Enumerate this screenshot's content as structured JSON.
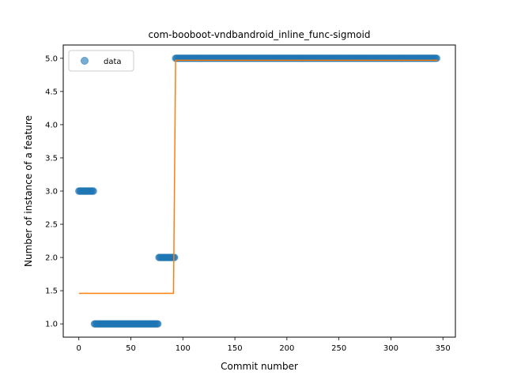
{
  "chart_data": {
    "type": "scatter",
    "title": "com-booboot-vndbandroid_inline_func-sigmoid",
    "xlabel": "Commit number",
    "ylabel": "Number of instance of a feature",
    "xlim": [
      -15,
      362
    ],
    "ylim": [
      0.8,
      5.2
    ],
    "xticks": [
      0,
      50,
      100,
      150,
      200,
      250,
      300,
      350
    ],
    "yticks": [
      1.0,
      1.5,
      2.0,
      2.5,
      3.0,
      3.5,
      4.0,
      4.5,
      5.0
    ],
    "xtick_labels": [
      "0",
      "50",
      "100",
      "150",
      "200",
      "250",
      "300",
      "350"
    ],
    "ytick_labels": [
      "1.0",
      "1.5",
      "2.0",
      "2.5",
      "3.0",
      "3.5",
      "4.0",
      "4.5",
      "5.0"
    ],
    "legend": {
      "position": "top-left",
      "entries": [
        "data"
      ]
    },
    "grid": false,
    "series": [
      {
        "name": "data",
        "kind": "scatter",
        "color": "#1f77b4",
        "segments": [
          {
            "x_start": 0,
            "x_end": 15,
            "y": 3.0
          },
          {
            "x_start": 15,
            "x_end": 77,
            "y": 1.0
          },
          {
            "x_start": 77,
            "x_end": 93,
            "y": 2.0
          },
          {
            "x_start": 93,
            "x_end": 345,
            "y": 5.0
          }
        ]
      },
      {
        "kind": "line",
        "color": "#ff7f0e",
        "x": [
          0,
          91,
          93,
          345
        ],
        "y": [
          1.46,
          1.46,
          4.97,
          4.97
        ]
      }
    ]
  }
}
